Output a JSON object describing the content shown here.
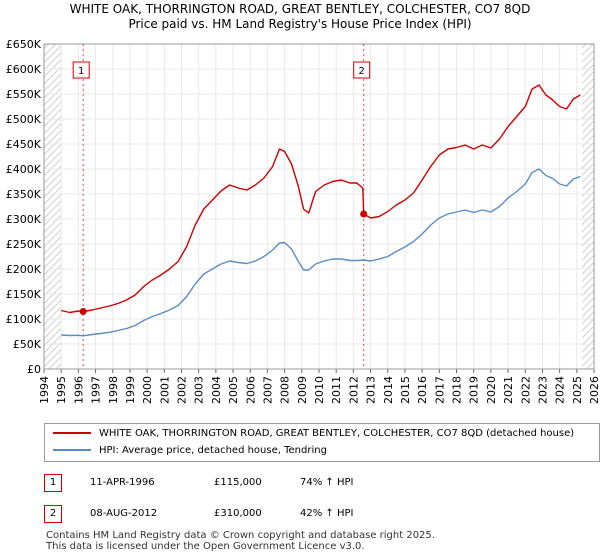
{
  "title_line1": "WHITE OAK, THORRINGTON ROAD, GREAT BENTLEY, COLCHESTER, CO7 8QD",
  "title_line2": "Price paid vs. HM Land Registry's House Price Index (HPI)",
  "colors": {
    "property": "#cc0000",
    "hpi": "#5b8cc8",
    "hatch": "#dddddd",
    "grid": "#e8e8e8"
  },
  "chart_data": {
    "type": "line",
    "title": "Price paid vs. HM Land Registry's House Price Index (HPI)",
    "xlabel": "",
    "ylabel": "",
    "ylim": [
      0,
      650000
    ],
    "xlim": [
      1994,
      2026
    ],
    "y_ticks": [
      {
        "value": 0,
        "label": "£0"
      },
      {
        "value": 50000,
        "label": "£50K"
      },
      {
        "value": 100000,
        "label": "£100K"
      },
      {
        "value": 150000,
        "label": "£150K"
      },
      {
        "value": 200000,
        "label": "£200K"
      },
      {
        "value": 250000,
        "label": "£250K"
      },
      {
        "value": 300000,
        "label": "£300K"
      },
      {
        "value": 350000,
        "label": "£350K"
      },
      {
        "value": 400000,
        "label": "£400K"
      },
      {
        "value": 450000,
        "label": "£450K"
      },
      {
        "value": 500000,
        "label": "£500K"
      },
      {
        "value": 550000,
        "label": "£550K"
      },
      {
        "value": 600000,
        "label": "£600K"
      },
      {
        "value": 650000,
        "label": "£650K"
      }
    ],
    "x_ticks": [
      1994,
      1995,
      1996,
      1997,
      1998,
      1999,
      2000,
      2001,
      2002,
      2003,
      2004,
      2005,
      2006,
      2007,
      2008,
      2009,
      2010,
      2011,
      2012,
      2013,
      2014,
      2015,
      2016,
      2017,
      2018,
      2019,
      2020,
      2021,
      2022,
      2023,
      2024,
      2025,
      2026
    ],
    "data_start": 1995.0,
    "data_end": 2025.3,
    "series": [
      {
        "name": "WHITE OAK, THORRINGTON ROAD, GREAT BENTLEY, COLCHESTER, CO7 8QD (detached house)",
        "points": [
          [
            1995.0,
            117000
          ],
          [
            1995.5,
            113000
          ],
          [
            1996.0,
            116000
          ],
          [
            1996.28,
            115000
          ],
          [
            1996.8,
            118000
          ],
          [
            1997.3,
            122000
          ],
          [
            1997.8,
            126000
          ],
          [
            1998.3,
            131000
          ],
          [
            1998.8,
            138000
          ],
          [
            1999.3,
            148000
          ],
          [
            1999.8,
            165000
          ],
          [
            2000.3,
            178000
          ],
          [
            2000.8,
            188000
          ],
          [
            2001.3,
            200000
          ],
          [
            2001.8,
            215000
          ],
          [
            2002.3,
            245000
          ],
          [
            2002.8,
            288000
          ],
          [
            2003.3,
            320000
          ],
          [
            2003.8,
            338000
          ],
          [
            2004.3,
            356000
          ],
          [
            2004.8,
            368000
          ],
          [
            2005.3,
            362000
          ],
          [
            2005.8,
            358000
          ],
          [
            2006.3,
            368000
          ],
          [
            2006.8,
            382000
          ],
          [
            2007.3,
            405000
          ],
          [
            2007.7,
            440000
          ],
          [
            2008.0,
            435000
          ],
          [
            2008.4,
            410000
          ],
          [
            2008.8,
            365000
          ],
          [
            2009.1,
            320000
          ],
          [
            2009.4,
            312000
          ],
          [
            2009.8,
            355000
          ],
          [
            2010.3,
            368000
          ],
          [
            2010.8,
            375000
          ],
          [
            2011.3,
            378000
          ],
          [
            2011.8,
            372000
          ],
          [
            2012.2,
            372000
          ],
          [
            2012.55,
            362000
          ],
          [
            2012.6,
            310000
          ],
          [
            2013.0,
            302000
          ],
          [
            2013.5,
            305000
          ],
          [
            2014.0,
            315000
          ],
          [
            2014.5,
            328000
          ],
          [
            2015.0,
            338000
          ],
          [
            2015.5,
            352000
          ],
          [
            2016.0,
            378000
          ],
          [
            2016.5,
            405000
          ],
          [
            2017.0,
            428000
          ],
          [
            2017.5,
            440000
          ],
          [
            2018.0,
            443000
          ],
          [
            2018.5,
            448000
          ],
          [
            2019.0,
            440000
          ],
          [
            2019.5,
            448000
          ],
          [
            2020.0,
            442000
          ],
          [
            2020.5,
            460000
          ],
          [
            2021.0,
            485000
          ],
          [
            2021.5,
            505000
          ],
          [
            2022.0,
            525000
          ],
          [
            2022.4,
            560000
          ],
          [
            2022.8,
            568000
          ],
          [
            2023.2,
            548000
          ],
          [
            2023.6,
            538000
          ],
          [
            2024.0,
            525000
          ],
          [
            2024.4,
            520000
          ],
          [
            2024.8,
            540000
          ],
          [
            2025.2,
            548000
          ]
        ]
      },
      {
        "name": "HPI: Average price, detached house, Tendring",
        "points": [
          [
            1995.0,
            68000
          ],
          [
            1995.5,
            67000
          ],
          [
            1996.0,
            67500
          ],
          [
            1996.28,
            66500
          ],
          [
            1996.8,
            69000
          ],
          [
            1997.3,
            71000
          ],
          [
            1997.8,
            73500
          ],
          [
            1998.3,
            77000
          ],
          [
            1998.8,
            81000
          ],
          [
            1999.3,
            87000
          ],
          [
            1999.8,
            97000
          ],
          [
            2000.3,
            105000
          ],
          [
            2000.8,
            111000
          ],
          [
            2001.3,
            118000
          ],
          [
            2001.8,
            127000
          ],
          [
            2002.3,
            145000
          ],
          [
            2002.8,
            170000
          ],
          [
            2003.3,
            190000
          ],
          [
            2003.8,
            200000
          ],
          [
            2004.3,
            210000
          ],
          [
            2004.8,
            216000
          ],
          [
            2005.3,
            213000
          ],
          [
            2005.8,
            211000
          ],
          [
            2006.3,
            216000
          ],
          [
            2006.8,
            225000
          ],
          [
            2007.3,
            238000
          ],
          [
            2007.7,
            252000
          ],
          [
            2008.0,
            253000
          ],
          [
            2008.4,
            240000
          ],
          [
            2008.8,
            215000
          ],
          [
            2009.1,
            198000
          ],
          [
            2009.4,
            198000
          ],
          [
            2009.8,
            210000
          ],
          [
            2010.3,
            216000
          ],
          [
            2010.8,
            220000
          ],
          [
            2011.3,
            220000
          ],
          [
            2011.8,
            217000
          ],
          [
            2012.2,
            217000
          ],
          [
            2012.6,
            218000
          ],
          [
            2013.0,
            216000
          ],
          [
            2013.5,
            220000
          ],
          [
            2014.0,
            225000
          ],
          [
            2014.5,
            235000
          ],
          [
            2015.0,
            244000
          ],
          [
            2015.5,
            255000
          ],
          [
            2016.0,
            270000
          ],
          [
            2016.5,
            288000
          ],
          [
            2017.0,
            302000
          ],
          [
            2017.5,
            310000
          ],
          [
            2018.0,
            314000
          ],
          [
            2018.5,
            318000
          ],
          [
            2019.0,
            313000
          ],
          [
            2019.5,
            318000
          ],
          [
            2020.0,
            314000
          ],
          [
            2020.5,
            325000
          ],
          [
            2021.0,
            342000
          ],
          [
            2021.5,
            355000
          ],
          [
            2022.0,
            370000
          ],
          [
            2022.4,
            393000
          ],
          [
            2022.8,
            400000
          ],
          [
            2023.2,
            387000
          ],
          [
            2023.6,
            381000
          ],
          [
            2024.0,
            370000
          ],
          [
            2024.4,
            366000
          ],
          [
            2024.8,
            380000
          ],
          [
            2025.2,
            385000
          ]
        ]
      }
    ],
    "markers": [
      {
        "label": "1",
        "x": 1996.28,
        "y": 115000
      },
      {
        "label": "2",
        "x": 2012.6,
        "y": 310000
      }
    ]
  },
  "legend": {
    "property_label": "WHITE OAK, THORRINGTON ROAD, GREAT BENTLEY, COLCHESTER, CO7 8QD (detached house)",
    "hpi_label": "HPI: Average price, detached house, Tendring"
  },
  "sales": [
    {
      "num": "1",
      "date": "11-APR-1996",
      "price": "£115,000",
      "hpi": "74% ↑ HPI"
    },
    {
      "num": "2",
      "date": "08-AUG-2012",
      "price": "£310,000",
      "hpi": "42% ↑ HPI"
    }
  ],
  "footer": {
    "line1": "Contains HM Land Registry data © Crown copyright and database right 2025.",
    "line2": "This data is licensed under the Open Government Licence v3.0."
  }
}
